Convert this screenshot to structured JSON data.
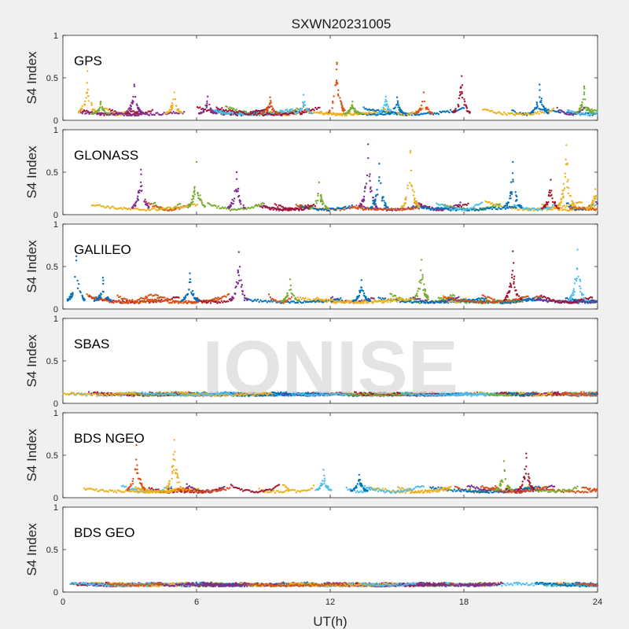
{
  "figure": {
    "title": "SXWN20231005",
    "watermark": "IONISE",
    "background": "#f0f0f0",
    "axes_background": "#ffffff"
  },
  "chart_data": {
    "type": "scatter",
    "title": "SXWN20231005",
    "xlabel": "UT(h)",
    "ylabel": "S4 Index",
    "xlim": [
      0,
      24
    ],
    "xticks": [
      0,
      6,
      12,
      18,
      24
    ],
    "ylim": [
      0,
      1
    ],
    "yticks": [
      0,
      0.5,
      1
    ],
    "yticklabels": [
      "0",
      "0.5",
      "1"
    ],
    "grid": false,
    "colors": [
      "#0072bd",
      "#d95319",
      "#edb120",
      "#7e2f8e",
      "#77ac30",
      "#4dbeee",
      "#a2142f"
    ],
    "panels": [
      {
        "name": "GPS",
        "baseline": 0.07,
        "spikes": [
          {
            "t": 1.1,
            "peak": 0.58,
            "series": 2
          },
          {
            "t": 1.7,
            "peak": 0.22,
            "series": 4
          },
          {
            "t": 3.2,
            "peak": 0.42,
            "series": 3
          },
          {
            "t": 5.0,
            "peak": 0.33,
            "series": 2
          },
          {
            "t": 6.5,
            "peak": 0.28,
            "series": 3
          },
          {
            "t": 9.3,
            "peak": 0.27,
            "series": 1
          },
          {
            "t": 10.8,
            "peak": 0.3,
            "series": 5
          },
          {
            "t": 12.3,
            "peak": 0.68,
            "series": 1
          },
          {
            "t": 13.0,
            "peak": 0.22,
            "series": 4
          },
          {
            "t": 14.5,
            "peak": 0.28,
            "series": 5
          },
          {
            "t": 15.0,
            "peak": 0.27,
            "series": 0
          },
          {
            "t": 16.2,
            "peak": 0.33,
            "series": 1
          },
          {
            "t": 17.9,
            "peak": 0.52,
            "series": 6
          },
          {
            "t": 21.4,
            "peak": 0.42,
            "series": 0
          },
          {
            "t": 23.4,
            "peak": 0.4,
            "series": 4
          }
        ]
      },
      {
        "name": "GLONASS",
        "baseline": 0.06,
        "spikes": [
          {
            "t": 3.5,
            "peak": 0.53,
            "series": 3
          },
          {
            "t": 6.0,
            "peak": 0.62,
            "series": 4
          },
          {
            "t": 7.8,
            "peak": 0.5,
            "series": 3
          },
          {
            "t": 11.5,
            "peak": 0.38,
            "series": 4
          },
          {
            "t": 13.7,
            "peak": 0.83,
            "series": 3
          },
          {
            "t": 14.2,
            "peak": 0.6,
            "series": 0
          },
          {
            "t": 15.6,
            "peak": 0.75,
            "series": 2
          },
          {
            "t": 20.2,
            "peak": 0.62,
            "series": 0
          },
          {
            "t": 21.9,
            "peak": 0.41,
            "series": 6
          },
          {
            "t": 22.6,
            "peak": 0.82,
            "series": 2
          },
          {
            "t": 23.9,
            "peak": 0.3,
            "series": 2
          }
        ]
      },
      {
        "name": "GALILEO",
        "baseline": 0.08,
        "spikes": [
          {
            "t": 0.6,
            "peak": 0.62,
            "series": 0
          },
          {
            "t": 1.8,
            "peak": 0.37,
            "series": 0
          },
          {
            "t": 5.7,
            "peak": 0.42,
            "series": 0
          },
          {
            "t": 7.9,
            "peak": 0.67,
            "series": 3
          },
          {
            "t": 10.2,
            "peak": 0.35,
            "series": 4
          },
          {
            "t": 13.4,
            "peak": 0.34,
            "series": 0
          },
          {
            "t": 16.1,
            "peak": 0.58,
            "series": 4
          },
          {
            "t": 20.2,
            "peak": 0.68,
            "series": 6
          },
          {
            "t": 23.1,
            "peak": 0.7,
            "series": 5
          }
        ]
      },
      {
        "name": "SBAS",
        "baseline": 0.1,
        "spikes": []
      },
      {
        "name": "BDS NGEO",
        "baseline": 0.07,
        "spikes": [
          {
            "t": 3.3,
            "peak": 0.62,
            "series": 1
          },
          {
            "t": 5.0,
            "peak": 0.68,
            "series": 2
          },
          {
            "t": 11.7,
            "peak": 0.33,
            "series": 5
          },
          {
            "t": 13.3,
            "peak": 0.27,
            "series": 0
          },
          {
            "t": 19.8,
            "peak": 0.43,
            "series": 4
          },
          {
            "t": 20.8,
            "peak": 0.52,
            "series": 6
          }
        ]
      },
      {
        "name": "BDS GEO",
        "baseline": 0.08,
        "spikes": []
      }
    ]
  }
}
